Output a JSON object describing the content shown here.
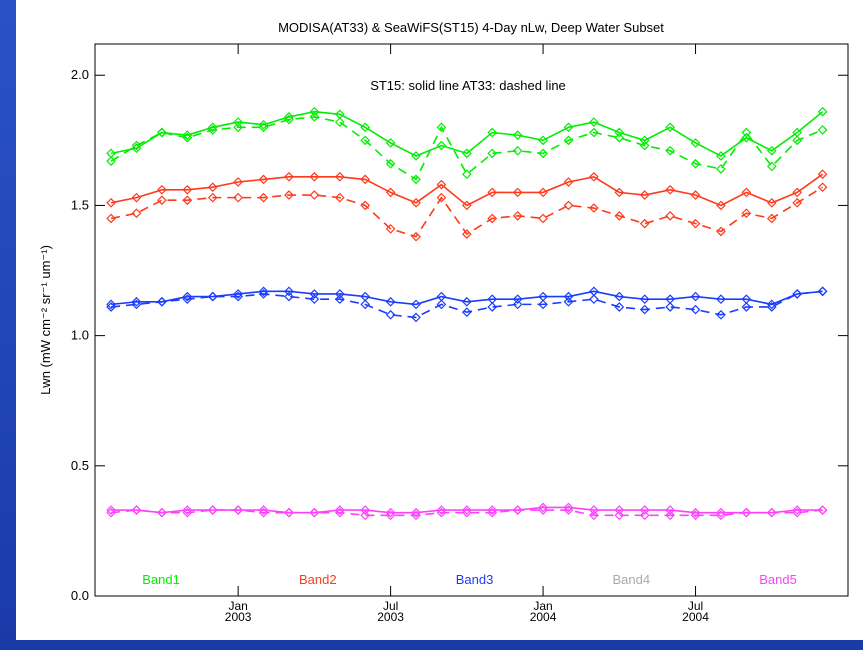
{
  "chart_data": {
    "type": "line",
    "title": "MODISA(AT33) & SeaWiFS(ST15) 4-Day nLw, Deep Water Subset",
    "annotation": "ST15: solid line   AT33: dashed line",
    "y_label": "Lwn (mW cm⁻² sr⁻¹ um⁻¹)",
    "x": [
      "2002-08",
      "2002-09",
      "2002-10",
      "2002-11",
      "2002-12",
      "2003-01",
      "2003-02",
      "2003-03",
      "2003-04",
      "2003-05",
      "2003-06",
      "2003-07",
      "2003-08",
      "2003-09",
      "2003-10",
      "2003-11",
      "2003-12",
      "2004-01",
      "2004-02",
      "2004-03",
      "2004-04",
      "2004-05",
      "2004-06",
      "2004-07",
      "2004-08",
      "2004-09",
      "2004-10",
      "2004-11",
      "2004-12"
    ],
    "xlim": [
      "2002-07-12",
      "2005-01-01"
    ],
    "xticks": [
      {
        "value": "2003-01",
        "label": "Jan 2003"
      },
      {
        "value": "2003-07",
        "label": "Jul 2003"
      },
      {
        "value": "2004-01",
        "label": "Jan 2004"
      },
      {
        "value": "2004-07",
        "label": "Jul 2004"
      }
    ],
    "ylim": [
      0,
      2.12
    ],
    "yticks": [
      {
        "value": 0,
        "label": "0.0"
      },
      {
        "value": 0.5,
        "label": "0.5"
      },
      {
        "value": 1,
        "label": "1.0"
      },
      {
        "value": 1.5,
        "label": "1.5"
      },
      {
        "value": 2,
        "label": "2.0"
      }
    ],
    "series": [
      {
        "name": "Band1",
        "color": "#00ee00",
        "st15": [
          1.7,
          1.72,
          1.78,
          1.77,
          1.8,
          1.82,
          1.81,
          1.84,
          1.86,
          1.85,
          1.8,
          1.74,
          1.69,
          1.73,
          1.7,
          1.78,
          1.77,
          1.75,
          1.8,
          1.82,
          1.78,
          1.75,
          1.8,
          1.74,
          1.69,
          1.76,
          1.71,
          1.78,
          1.86
        ],
        "at33": [
          1.67,
          1.73,
          1.78,
          1.76,
          1.79,
          1.8,
          1.8,
          1.83,
          1.84,
          1.82,
          1.75,
          1.66,
          1.6,
          1.8,
          1.62,
          1.7,
          1.71,
          1.7,
          1.75,
          1.78,
          1.76,
          1.73,
          1.71,
          1.66,
          1.64,
          1.78,
          1.65,
          1.75,
          1.79
        ]
      },
      {
        "name": "Band2",
        "color": "#ff3a1a",
        "st15": [
          1.51,
          1.53,
          1.56,
          1.56,
          1.57,
          1.59,
          1.6,
          1.61,
          1.61,
          1.61,
          1.6,
          1.55,
          1.51,
          1.58,
          1.5,
          1.55,
          1.55,
          1.55,
          1.59,
          1.61,
          1.55,
          1.54,
          1.56,
          1.54,
          1.5,
          1.55,
          1.51,
          1.55,
          1.62
        ],
        "at33": [
          1.45,
          1.47,
          1.52,
          1.52,
          1.53,
          1.53,
          1.53,
          1.54,
          1.54,
          1.53,
          1.5,
          1.41,
          1.38,
          1.53,
          1.39,
          1.45,
          1.46,
          1.45,
          1.5,
          1.49,
          1.46,
          1.43,
          1.46,
          1.43,
          1.4,
          1.47,
          1.45,
          1.51,
          1.57
        ]
      },
      {
        "name": "Band3",
        "color": "#1a3cff",
        "st15": [
          1.12,
          1.13,
          1.13,
          1.15,
          1.15,
          1.16,
          1.17,
          1.17,
          1.16,
          1.16,
          1.15,
          1.13,
          1.12,
          1.15,
          1.13,
          1.14,
          1.14,
          1.15,
          1.15,
          1.17,
          1.15,
          1.14,
          1.14,
          1.15,
          1.14,
          1.14,
          1.12,
          1.16,
          1.17
        ],
        "at33": [
          1.11,
          1.12,
          1.13,
          1.14,
          1.15,
          1.15,
          1.16,
          1.15,
          1.14,
          1.14,
          1.12,
          1.08,
          1.07,
          1.12,
          1.09,
          1.11,
          1.12,
          1.12,
          1.13,
          1.14,
          1.11,
          1.1,
          1.11,
          1.1,
          1.08,
          1.11,
          1.11,
          1.16,
          1.17
        ]
      },
      {
        "name": "Band4",
        "color": "#aaaaaa"
      },
      {
        "name": "Band5",
        "color": "#ff40ff",
        "st15": [
          0.33,
          0.33,
          0.32,
          0.33,
          0.33,
          0.33,
          0.33,
          0.32,
          0.32,
          0.33,
          0.33,
          0.32,
          0.32,
          0.33,
          0.33,
          0.33,
          0.33,
          0.34,
          0.34,
          0.33,
          0.33,
          0.33,
          0.33,
          0.32,
          0.32,
          0.32,
          0.32,
          0.33,
          0.33
        ],
        "at33": [
          0.32,
          0.33,
          0.32,
          0.32,
          0.33,
          0.33,
          0.32,
          0.32,
          0.32,
          0.32,
          0.31,
          0.31,
          0.31,
          0.32,
          0.32,
          0.32,
          0.33,
          0.33,
          0.33,
          0.31,
          0.31,
          0.31,
          0.31,
          0.31,
          0.31,
          0.32,
          0.32,
          0.32,
          0.33
        ]
      }
    ]
  }
}
